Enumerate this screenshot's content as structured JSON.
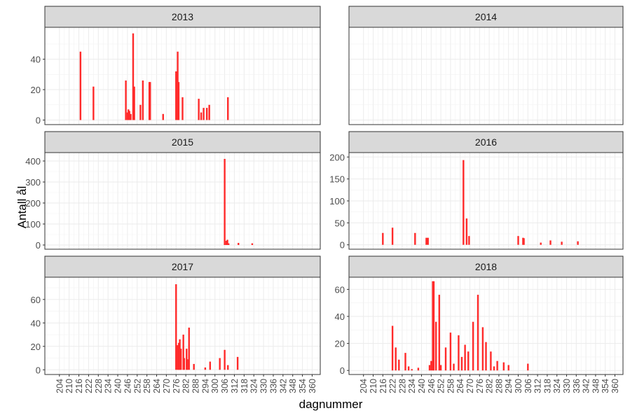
{
  "chart_data": {
    "type": "bar",
    "xlabel": "dagnummer",
    "ylabel": "Antall ål",
    "xlim": [
      195,
      365
    ],
    "x_ticks": [
      204,
      210,
      216,
      222,
      228,
      234,
      240,
      246,
      252,
      258,
      264,
      270,
      276,
      282,
      288,
      294,
      300,
      306,
      312,
      318,
      324,
      330,
      336,
      342,
      348,
      354,
      360
    ],
    "bar_color": "#ff2a2a",
    "strip_fill": "#d9d9d9",
    "grid": true,
    "panels": [
      {
        "title": "2013",
        "ylim": [
          -3,
          61
        ],
        "y_ticks": [
          0,
          20,
          40
        ],
        "points": [
          [
            217,
            45
          ],
          [
            225,
            22
          ],
          [
            237,
            0
          ],
          [
            245,
            26
          ],
          [
            246,
            5
          ],
          [
            246.6,
            7
          ],
          [
            247.2,
            6
          ],
          [
            248,
            4
          ],
          [
            249.5,
            57
          ],
          [
            250.2,
            22
          ],
          [
            254,
            10
          ],
          [
            255.5,
            26
          ],
          [
            259.5,
            25
          ],
          [
            260,
            25
          ],
          [
            268,
            4
          ],
          [
            276,
            32
          ],
          [
            277,
            45
          ],
          [
            277.6,
            25
          ],
          [
            280,
            15
          ],
          [
            290,
            14
          ],
          [
            291.5,
            5
          ],
          [
            293,
            8
          ],
          [
            295,
            8
          ],
          [
            296.5,
            10
          ],
          [
            308,
            15
          ]
        ]
      },
      {
        "title": "2014",
        "ylim": [
          -3,
          61
        ],
        "y_ticks": [],
        "points": []
      },
      {
        "title": "2015",
        "ylim": [
          -20,
          440
        ],
        "y_ticks": [
          0,
          100,
          200,
          300,
          400
        ],
        "points": [
          [
            306,
            410
          ],
          [
            307,
            20
          ],
          [
            307.7,
            25
          ],
          [
            308.4,
            8
          ],
          [
            314.5,
            10
          ],
          [
            323,
            8
          ]
        ]
      },
      {
        "title": "2016",
        "ylim": [
          -10,
          210
        ],
        "y_ticks": [
          0,
          50,
          100,
          150,
          200
        ],
        "points": [
          [
            216,
            27
          ],
          [
            222,
            39
          ],
          [
            236,
            27
          ],
          [
            243,
            16
          ],
          [
            244,
            16
          ],
          [
            266,
            193
          ],
          [
            268,
            60
          ],
          [
            269.5,
            20
          ],
          [
            300,
            20
          ],
          [
            303,
            16
          ],
          [
            303.5,
            15
          ],
          [
            314,
            5
          ],
          [
            320,
            10
          ],
          [
            327,
            7
          ],
          [
            337,
            8
          ]
        ]
      },
      {
        "title": "2017",
        "ylim": [
          -4,
          79
        ],
        "y_ticks": [
          0,
          20,
          40,
          60
        ],
        "points": [
          [
            276,
            73
          ],
          [
            277,
            21
          ],
          [
            277.7,
            23
          ],
          [
            278.3,
            26
          ],
          [
            279,
            18
          ],
          [
            280.5,
            30
          ],
          [
            281,
            10
          ],
          [
            282.5,
            18
          ],
          [
            283,
            9
          ],
          [
            284,
            36
          ],
          [
            287,
            5
          ],
          [
            294,
            2
          ],
          [
            297,
            7
          ],
          [
            303,
            10
          ],
          [
            306,
            17
          ],
          [
            308,
            4
          ],
          [
            314,
            11
          ]
        ]
      },
      {
        "title": "2018",
        "ylim": [
          -3,
          69
        ],
        "y_ticks": [
          0,
          20,
          40,
          60
        ],
        "points": [
          [
            222,
            33
          ],
          [
            224,
            17
          ],
          [
            226,
            8
          ],
          [
            230,
            13
          ],
          [
            232,
            3
          ],
          [
            234,
            1
          ],
          [
            238,
            2
          ],
          [
            245,
            4
          ],
          [
            246,
            7
          ],
          [
            247,
            66
          ],
          [
            247.6,
            66
          ],
          [
            249,
            36
          ],
          [
            251,
            56
          ],
          [
            252,
            4
          ],
          [
            255,
            17
          ],
          [
            258,
            28
          ],
          [
            260,
            5
          ],
          [
            263,
            26
          ],
          [
            265,
            10
          ],
          [
            267,
            19
          ],
          [
            269,
            14
          ],
          [
            272,
            36
          ],
          [
            275,
            56
          ],
          [
            278,
            32
          ],
          [
            280,
            21
          ],
          [
            283,
            14
          ],
          [
            285,
            3
          ],
          [
            287,
            7
          ],
          [
            291,
            6
          ],
          [
            294,
            4
          ],
          [
            306,
            5
          ]
        ]
      }
    ]
  }
}
